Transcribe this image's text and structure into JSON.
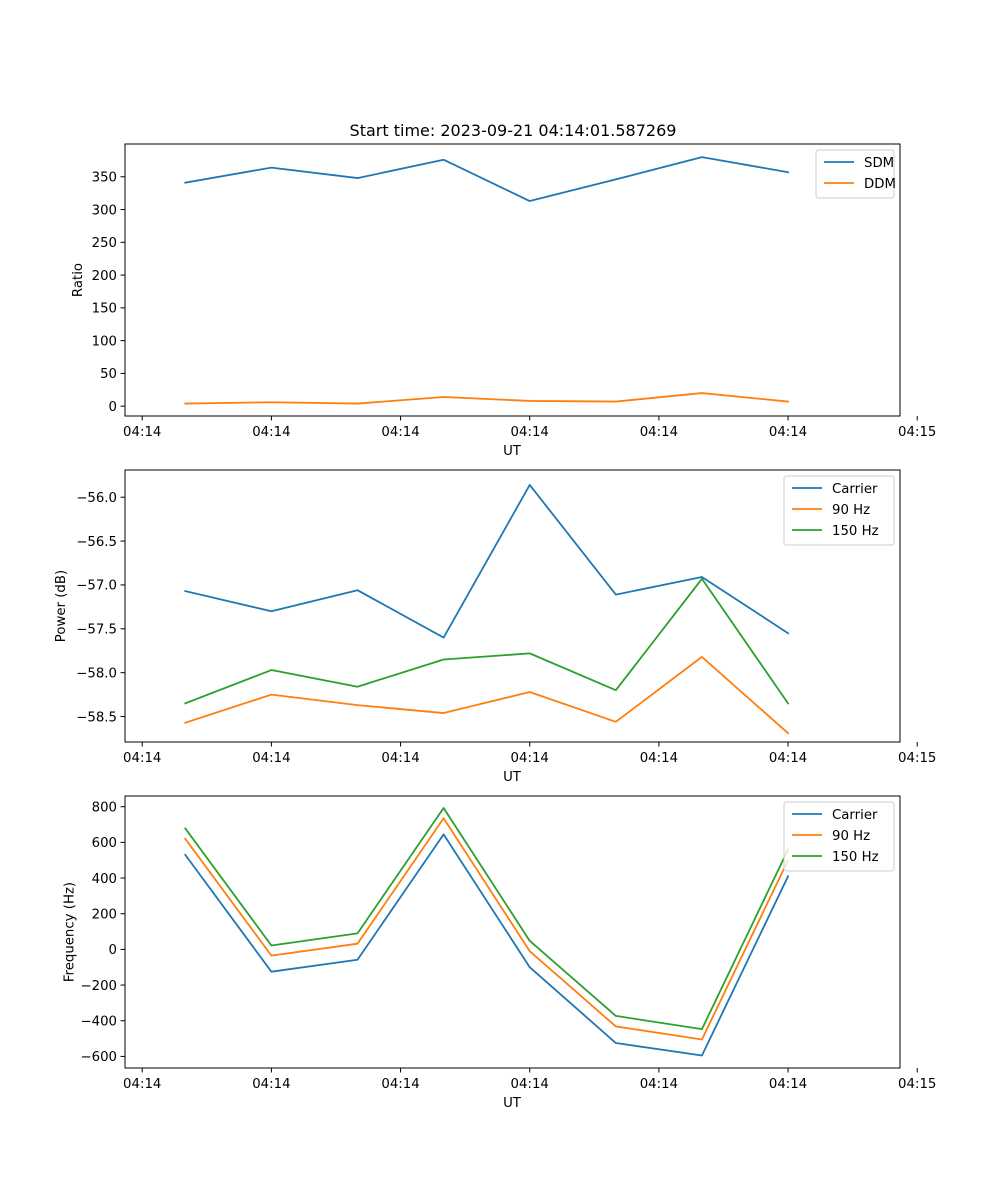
{
  "figure": {
    "title": "Start time: 2023-09-21 04:14:01.587269"
  },
  "colors": {
    "blue": "#1f77b4",
    "orange": "#ff7f0e",
    "green": "#2ca02c"
  },
  "chart_data": [
    {
      "type": "line",
      "title": "Start time: 2023-09-21 04:14:01.587269",
      "xlabel": "UT",
      "ylabel": "Ratio",
      "x": [
        1,
        2,
        3,
        4,
        5,
        6,
        7,
        8
      ],
      "xlim": [
        0.3,
        9.3
      ],
      "xticks": [
        0.5,
        2,
        3.5,
        5,
        6.5,
        8,
        9.5
      ],
      "xtick_labels": [
        "04:14",
        "04:14",
        "04:14",
        "04:14",
        "04:14",
        "04:14",
        "04:15"
      ],
      "ylim": [
        -15,
        400
      ],
      "yticks": [
        0,
        50,
        100,
        150,
        200,
        250,
        300,
        350
      ],
      "ytick_labels": [
        "0",
        "50",
        "100",
        "150",
        "200",
        "250",
        "300",
        "350"
      ],
      "legend": "top-right",
      "series": [
        {
          "name": "SDM",
          "color": "#1f77b4",
          "values": [
            341,
            364,
            348,
            376,
            313,
            346,
            380,
            357
          ]
        },
        {
          "name": "DDM",
          "color": "#ff7f0e",
          "values": [
            4,
            6,
            4,
            14,
            8,
            7,
            20,
            7
          ]
        }
      ]
    },
    {
      "type": "line",
      "title": "",
      "xlabel": "UT",
      "ylabel": "Power (dB)",
      "x": [
        1,
        2,
        3,
        4,
        5,
        6,
        7,
        8
      ],
      "xlim": [
        0.3,
        9.3
      ],
      "xticks": [
        0.5,
        2,
        3.5,
        5,
        6.5,
        8,
        9.5
      ],
      "xtick_labels": [
        "04:14",
        "04:14",
        "04:14",
        "04:14",
        "04:14",
        "04:14",
        "04:15"
      ],
      "ylim": [
        -58.79,
        -55.69
      ],
      "yticks": [
        -58.5,
        -58.0,
        -57.5,
        -57.0,
        -56.5,
        -56.0
      ],
      "ytick_labels": [
        "−58.5",
        "−58.0",
        "−57.5",
        "−57.0",
        "−56.5",
        "−56.0"
      ],
      "legend": "top-right",
      "series": [
        {
          "name": "Carrier",
          "color": "#1f77b4",
          "values": [
            -57.07,
            -57.3,
            -57.06,
            -57.6,
            -55.86,
            -57.11,
            -56.91,
            -57.55
          ]
        },
        {
          "name": "90 Hz",
          "color": "#ff7f0e",
          "values": [
            -58.57,
            -58.25,
            -58.37,
            -58.46,
            -58.22,
            -58.56,
            -57.82,
            -58.69
          ]
        },
        {
          "name": "150 Hz",
          "color": "#2ca02c",
          "values": [
            -58.35,
            -57.97,
            -58.16,
            -57.85,
            -57.78,
            -58.2,
            -56.93,
            -58.35
          ]
        }
      ]
    },
    {
      "type": "line",
      "title": "",
      "xlabel": "UT",
      "ylabel": "Frequency (Hz)",
      "x": [
        1,
        2,
        3,
        4,
        5,
        6,
        7,
        8
      ],
      "xlim": [
        0.3,
        9.3
      ],
      "xticks": [
        0.5,
        2,
        3.5,
        5,
        6.5,
        8,
        9.5
      ],
      "xtick_labels": [
        "04:14",
        "04:14",
        "04:14",
        "04:14",
        "04:14",
        "04:14",
        "04:15"
      ],
      "ylim": [
        -665,
        860
      ],
      "yticks": [
        -600,
        -400,
        -200,
        0,
        200,
        400,
        600,
        800
      ],
      "ytick_labels": [
        "−600",
        "−400",
        "−200",
        "0",
        "200",
        "400",
        "600",
        "800"
      ],
      "legend": "top-right",
      "series": [
        {
          "name": "Carrier",
          "color": "#1f77b4",
          "values": [
            530,
            -125,
            -58,
            645,
            -100,
            -525,
            -595,
            410
          ]
        },
        {
          "name": "90 Hz",
          "color": "#ff7f0e",
          "values": [
            620,
            -35,
            32,
            735,
            -10,
            -432,
            -505,
            500
          ]
        },
        {
          "name": "150 Hz",
          "color": "#2ca02c",
          "values": [
            678,
            22,
            90,
            793,
            48,
            -373,
            -447,
            560
          ]
        }
      ]
    }
  ]
}
